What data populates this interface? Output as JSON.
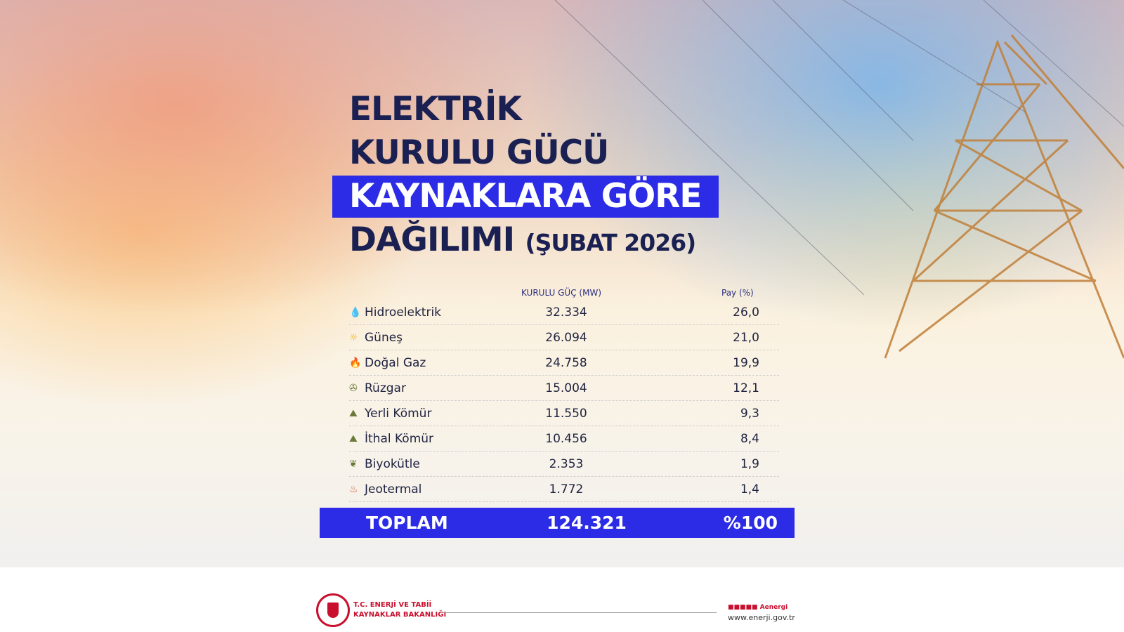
{
  "title": {
    "line1": "ELEKTRİK",
    "line2": "KURULU GÜCÜ",
    "line3": "KAYNAKLARA GÖRE",
    "line4": "DAĞILIMI",
    "period": "(ŞUBAT 2026)"
  },
  "table": {
    "headers": {
      "capacity": "KURULU GÜÇ (MW)",
      "share": "Pay (%)"
    },
    "rows": [
      {
        "icon": "water-drop-icon",
        "glyph": "💧",
        "name": "Hidroelektrik",
        "mw": "32.334",
        "pct": "26,0",
        "color": "#3fa9c9"
      },
      {
        "icon": "sun-icon",
        "glyph": "☼",
        "name": "Güneş",
        "mw": "26.094",
        "pct": "21,0",
        "color": "#e8b020"
      },
      {
        "icon": "gas-flame-icon",
        "glyph": "🔥",
        "name": "Doğal Gaz",
        "mw": "24.758",
        "pct": "19,9",
        "color": "#3050a0"
      },
      {
        "icon": "wind-turbine-icon",
        "glyph": "✇",
        "name": "Rüzgar",
        "mw": "15.004",
        "pct": "12,1",
        "color": "#6a7a3a"
      },
      {
        "icon": "coal-icon",
        "glyph": "⛰",
        "name": "Yerli Kömür",
        "mw": "11.550",
        "pct": "9,3",
        "color": "#6a7a3a"
      },
      {
        "icon": "coal-icon",
        "glyph": "⛰",
        "name": "İthal Kömür",
        "mw": "10.456",
        "pct": "8,4",
        "color": "#6a7a3a"
      },
      {
        "icon": "biomass-icon",
        "glyph": "❦",
        "name": "Biyokütle",
        "mw": "2.353",
        "pct": "1,9",
        "color": "#6a7a3a"
      },
      {
        "icon": "geothermal-icon",
        "glyph": "♨",
        "name": "Jeotermal",
        "mw": "1.772",
        "pct": "1,4",
        "color": "#d0502a"
      }
    ],
    "total": {
      "label": "TOPLAM",
      "mw": "124.321",
      "pct": "%100"
    }
  },
  "footer": {
    "ministry_line1": "T.C. ENERJİ VE TABİİ",
    "ministry_line2": "KAYNAKLAR BAKANLIĞI",
    "social": "Aenergi",
    "website": "www.enerji.gov.tr"
  },
  "colors": {
    "accent": "#2c2ce6",
    "title": "#1a2052",
    "brand": "#c8102e"
  }
}
